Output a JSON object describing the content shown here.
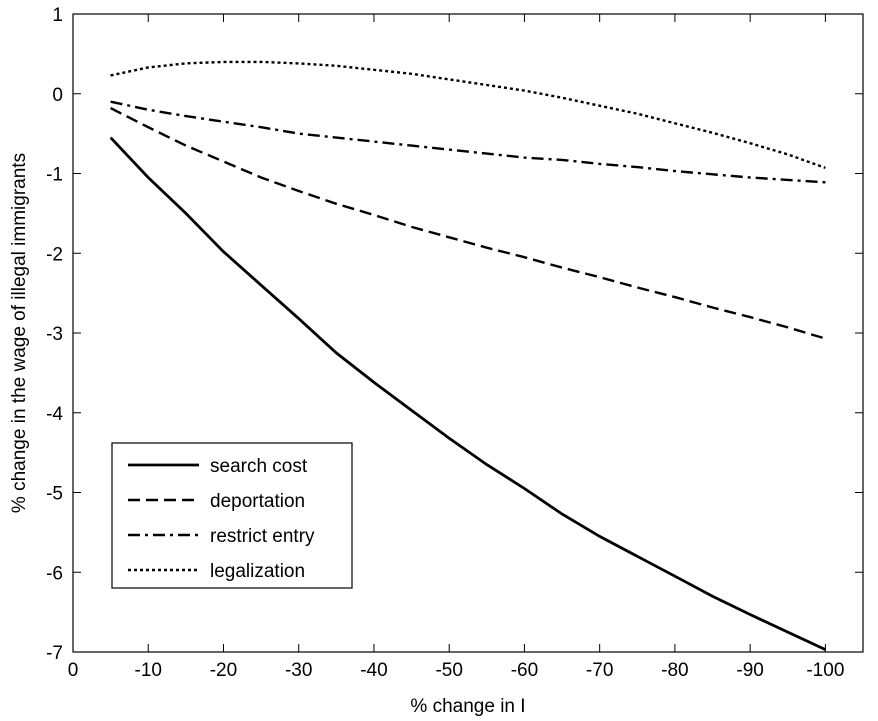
{
  "chart_data": {
    "type": "line",
    "xlabel": "% change in I",
    "ylabel": "% change in the wage of illegal immigrants",
    "xlim": [
      0,
      -105
    ],
    "ylim": [
      -7,
      1
    ],
    "x_reversed": true,
    "x_ticks": [
      0,
      -10,
      -20,
      -30,
      -40,
      -50,
      -60,
      -70,
      -80,
      -90,
      -100
    ],
    "x_tick_labels": [
      "0",
      "-10",
      "-20",
      "-30",
      "-40",
      "-50",
      "-60",
      "-70",
      "-80",
      "-90",
      "-100"
    ],
    "y_ticks": [
      1,
      0,
      -1,
      -2,
      -3,
      -4,
      -5,
      -6,
      -7
    ],
    "y_tick_labels": [
      "1",
      "0",
      "-1",
      "-2",
      "-3",
      "-4",
      "-5",
      "-6",
      "-7"
    ],
    "grid": false,
    "legend_position": "bottom-left",
    "x": [
      -5,
      -10,
      -15,
      -20,
      -25,
      -30,
      -35,
      -40,
      -45,
      -50,
      -55,
      -60,
      -65,
      -70,
      -75,
      -80,
      -85,
      -90,
      -95,
      -100
    ],
    "series": [
      {
        "name": "search cost",
        "dash": "solid",
        "values": [
          -0.55,
          -1.05,
          -1.5,
          -1.98,
          -2.4,
          -2.82,
          -3.25,
          -3.62,
          -3.97,
          -4.32,
          -4.65,
          -4.95,
          -5.27,
          -5.55,
          -5.8,
          -6.05,
          -6.3,
          -6.53,
          -6.75,
          -6.97
        ]
      },
      {
        "name": "deportation",
        "dash": "dashed",
        "values": [
          -0.18,
          -0.42,
          -0.65,
          -0.85,
          -1.05,
          -1.22,
          -1.38,
          -1.52,
          -1.67,
          -1.8,
          -1.93,
          -2.05,
          -2.18,
          -2.3,
          -2.43,
          -2.55,
          -2.68,
          -2.8,
          -2.93,
          -3.07
        ]
      },
      {
        "name": "restrict entry",
        "dash": "dashdot",
        "values": [
          -0.1,
          -0.2,
          -0.28,
          -0.35,
          -0.42,
          -0.5,
          -0.55,
          -0.6,
          -0.65,
          -0.7,
          -0.75,
          -0.8,
          -0.83,
          -0.88,
          -0.92,
          -0.97,
          -1.01,
          -1.05,
          -1.08,
          -1.11
        ]
      },
      {
        "name": "legalization",
        "dash": "dotted",
        "values": [
          0.23,
          0.33,
          0.38,
          0.4,
          0.4,
          0.38,
          0.35,
          0.3,
          0.25,
          0.18,
          0.11,
          0.04,
          -0.05,
          -0.15,
          -0.25,
          -0.37,
          -0.49,
          -0.62,
          -0.76,
          -0.93
        ]
      }
    ]
  }
}
